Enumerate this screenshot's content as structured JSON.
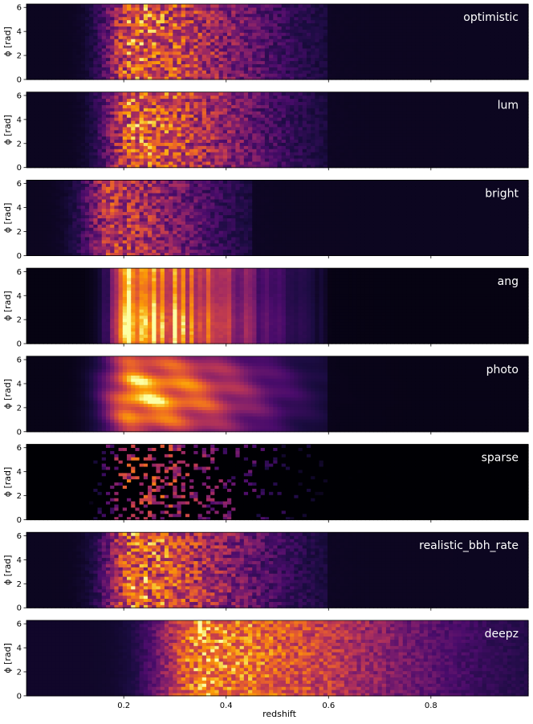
{
  "chart_data": {
    "type": "heatmap",
    "colormap": "inferno",
    "xlabel": "redshift",
    "ylabel": "ϕ [rad]",
    "xlim": [
      0.01,
      0.99
    ],
    "ylim": [
      0,
      6.283
    ],
    "x_ticks": [
      0.2,
      0.4,
      0.6,
      0.8
    ],
    "x_tick_labels": [
      "0.2",
      "0.4",
      "0.6",
      "0.8"
    ],
    "y_ticks": [
      0,
      2,
      4,
      6
    ],
    "y_tick_labels": [
      "0",
      "2",
      "4",
      "6"
    ],
    "grid": false,
    "panels": [
      {
        "label": "optimistic",
        "profile": {
          "peak": 0.22,
          "rise": 0.04,
          "width": 0.13,
          "cutoff": 0.6,
          "mid": 0.7,
          "floor": 0.06
        },
        "texture": "cellular",
        "stripes": false
      },
      {
        "label": "lum",
        "profile": {
          "peak": 0.22,
          "rise": 0.04,
          "width": 0.13,
          "cutoff": 0.6,
          "mid": 0.7,
          "floor": 0.06
        },
        "texture": "cellular",
        "stripes": false
      },
      {
        "label": "bright",
        "profile": {
          "peak": 0.18,
          "rise": 0.04,
          "width": 0.1,
          "cutoff": 0.45,
          "mid": 0.55,
          "floor": 0.06
        },
        "texture": "cellular",
        "stripes": false
      },
      {
        "label": "ang",
        "profile": {
          "peak": 0.22,
          "rise": 0.03,
          "width": 0.12,
          "cutoff": 0.6,
          "mid": 0.9,
          "floor": 0.03
        },
        "texture": "vertical",
        "stripes": false
      },
      {
        "label": "photo",
        "profile": {
          "peak": 0.22,
          "rise": 0.04,
          "width": 0.13,
          "cutoff": 0.6,
          "mid": 0.85,
          "floor": 0.04
        },
        "texture": "smooth",
        "stripes": true
      },
      {
        "label": "sparse",
        "profile": {
          "peak": 0.22,
          "rise": 0.04,
          "width": 0.13,
          "cutoff": 0.6,
          "mid": 0.55,
          "floor": 0.0
        },
        "texture": "sparse",
        "stripes": false
      },
      {
        "label": "realistic_bbh_rate",
        "profile": {
          "peak": 0.22,
          "rise": 0.04,
          "width": 0.13,
          "cutoff": 0.6,
          "mid": 0.7,
          "floor": 0.06
        },
        "texture": "cellular",
        "stripes": false
      },
      {
        "label": "deepz",
        "profile": {
          "peak": 0.35,
          "rise": 0.06,
          "width": 0.22,
          "cutoff": 1.0,
          "mid": 0.75,
          "floor": 0.08
        },
        "texture": "deep",
        "stripes": false
      }
    ]
  }
}
